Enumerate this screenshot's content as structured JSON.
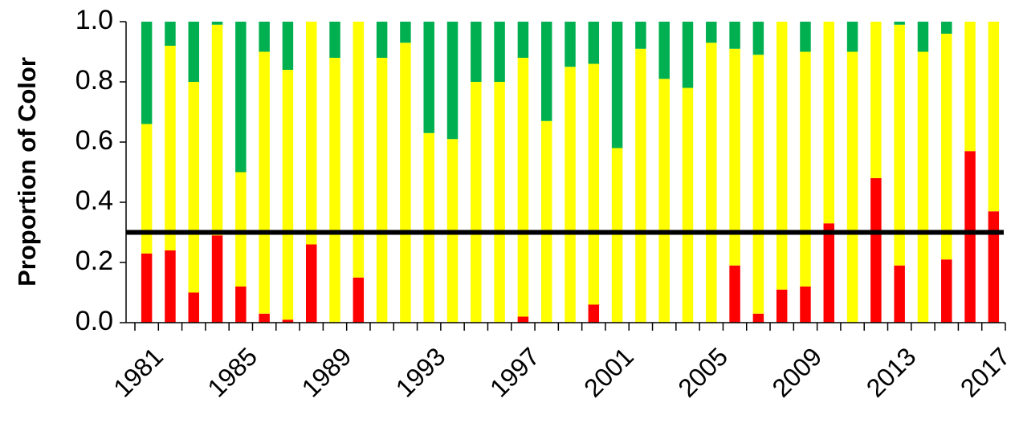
{
  "chart_data": {
    "type": "stacked_bar",
    "y_label": "Proportion of Color",
    "categories": [
      "1981",
      null,
      null,
      null,
      "1985",
      null,
      null,
      null,
      "1989",
      null,
      null,
      null,
      "1993",
      null,
      null,
      null,
      "1997",
      null,
      null,
      null,
      "2001",
      null,
      null,
      null,
      "2005",
      null,
      null,
      null,
      "2009",
      null,
      null,
      null,
      "2013",
      null,
      null,
      null,
      "2017"
    ],
    "series": [
      {
        "color": "#ff0000",
        "values": [
          0.23,
          0.24,
          0.1,
          0.29,
          0.12,
          0.03,
          0.01,
          0.26,
          0,
          0.15,
          0,
          0,
          0,
          0,
          0,
          0,
          0.02,
          0,
          0,
          0.06,
          0,
          0,
          0,
          0,
          0,
          0.19,
          0.03,
          0.11,
          0.12,
          0.33,
          0,
          0.48,
          0.19,
          0,
          0.21,
          0.57,
          0.37
        ]
      },
      {
        "color": "#ffff00",
        "values": [
          0.43,
          0.68,
          0.7,
          0.7,
          0.38,
          0.87,
          0.83,
          0.74,
          0.88,
          0.85,
          0.88,
          0.93,
          0.63,
          0.61,
          0.8,
          0.8,
          0.86,
          0.67,
          0.85,
          0.8,
          0.58,
          0.91,
          0.81,
          0.78,
          0.93,
          0.72,
          0.86,
          0.89,
          0.78,
          0.67,
          0.9,
          0.52,
          0.8,
          0.9,
          0.75,
          0.43,
          0.63
        ]
      },
      {
        "color": "#00b050",
        "values": [
          0.34,
          0.08,
          0.2,
          0.01,
          0.5,
          0.1,
          0.16,
          0,
          0.12,
          0,
          0.12,
          0.07,
          0.37,
          0.39,
          0.2,
          0.2,
          0.12,
          0.33,
          0.15,
          0.14,
          0.42,
          0.09,
          0.19,
          0.22,
          0.07,
          0.09,
          0.11,
          0,
          0.1,
          0,
          0.1,
          0,
          0.01,
          0.1,
          0.04,
          0,
          0
        ]
      }
    ],
    "reference_line": {
      "value": 0.3,
      "color": "#000000"
    },
    "ylim": [
      0,
      1
    ],
    "yticks": [
      {
        "value": 0,
        "label": "0.0"
      },
      0.2,
      0.4,
      0.6,
      0.8,
      {
        "value": 1,
        "label": "1.0"
      }
    ]
  }
}
